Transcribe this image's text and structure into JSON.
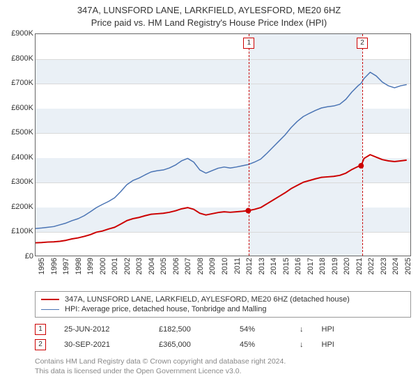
{
  "chart": {
    "title_line1": "347A, LUNSFORD LANE, LARKFIELD, AYLESFORD, ME20 6HZ",
    "title_line2": "Price paid vs. HM Land Registry's House Price Index (HPI)",
    "title_fontsize": 13,
    "background_color": "#ffffff",
    "plot_border_color": "#666666",
    "grid_color": "#d9d9d9",
    "band_color": "#eaf0f6",
    "axis_font_size": 11,
    "x": {
      "min": 1995.0,
      "max": 2025.8,
      "ticks": [
        1995,
        1996,
        1997,
        1998,
        1999,
        2000,
        2001,
        2002,
        2003,
        2004,
        2005,
        2006,
        2007,
        2008,
        2009,
        2010,
        2011,
        2012,
        2013,
        2014,
        2015,
        2016,
        2017,
        2018,
        2019,
        2020,
        2021,
        2022,
        2023,
        2024,
        2025
      ],
      "tick_rotation_deg": -90
    },
    "y": {
      "min": 0,
      "max": 900,
      "ticks": [
        0,
        100,
        200,
        300,
        400,
        500,
        600,
        700,
        800,
        900
      ],
      "tick_prefix": "£",
      "tick_suffix": "K",
      "zero_label": "£0"
    },
    "hband_years": [
      [
        2012.48,
        2013.0
      ],
      [
        2013.0,
        2021.75
      ]
    ],
    "hband_style": [
      "dashed-left-only",
      "shaded"
    ],
    "legend": [
      {
        "label": "347A, LUNSFORD LANE, LARKFIELD, AYLESFORD, ME20 6HZ (detached house)",
        "color": "#cc0000",
        "width": 2
      },
      {
        "label": "HPI: Average price, detached house, Tonbridge and Malling",
        "color": "#4a74b4",
        "width": 1.5
      }
    ],
    "series": [
      {
        "name": "property_price_paid_indexed",
        "color": "#cc0000",
        "width": 2,
        "points": [
          [
            1995.0,
            52
          ],
          [
            1995.5,
            53
          ],
          [
            1996.0,
            55
          ],
          [
            1996.5,
            56
          ],
          [
            1997.0,
            58
          ],
          [
            1997.5,
            62
          ],
          [
            1998.0,
            68
          ],
          [
            1998.5,
            72
          ],
          [
            1999.0,
            78
          ],
          [
            1999.5,
            85
          ],
          [
            2000.0,
            95
          ],
          [
            2000.5,
            100
          ],
          [
            2001.0,
            108
          ],
          [
            2001.5,
            115
          ],
          [
            2002.0,
            128
          ],
          [
            2002.5,
            142
          ],
          [
            2003.0,
            150
          ],
          [
            2003.5,
            155
          ],
          [
            2004.0,
            162
          ],
          [
            2004.5,
            168
          ],
          [
            2005.0,
            170
          ],
          [
            2005.5,
            172
          ],
          [
            2006.0,
            176
          ],
          [
            2006.5,
            182
          ],
          [
            2007.0,
            190
          ],
          [
            2007.5,
            195
          ],
          [
            2008.0,
            188
          ],
          [
            2008.5,
            172
          ],
          [
            2009.0,
            165
          ],
          [
            2009.5,
            170
          ],
          [
            2010.0,
            175
          ],
          [
            2010.5,
            178
          ],
          [
            2011.0,
            176
          ],
          [
            2011.5,
            178
          ],
          [
            2012.0,
            180
          ],
          [
            2012.48,
            182.5
          ],
          [
            2013.0,
            188
          ],
          [
            2013.5,
            195
          ],
          [
            2014.0,
            210
          ],
          [
            2014.5,
            225
          ],
          [
            2015.0,
            240
          ],
          [
            2015.5,
            255
          ],
          [
            2016.0,
            272
          ],
          [
            2016.5,
            285
          ],
          [
            2017.0,
            298
          ],
          [
            2017.5,
            305
          ],
          [
            2018.0,
            312
          ],
          [
            2018.5,
            318
          ],
          [
            2019.0,
            320
          ],
          [
            2019.5,
            322
          ],
          [
            2020.0,
            326
          ],
          [
            2020.5,
            335
          ],
          [
            2021.0,
            350
          ],
          [
            2021.5,
            362
          ],
          [
            2021.75,
            365
          ],
          [
            2022.0,
            395
          ],
          [
            2022.5,
            410
          ],
          [
            2023.0,
            400
          ],
          [
            2023.5,
            390
          ],
          [
            2024.0,
            385
          ],
          [
            2024.5,
            382
          ],
          [
            2025.0,
            385
          ],
          [
            2025.5,
            388
          ]
        ]
      },
      {
        "name": "hpi_detached_tonbridge_malling",
        "color": "#4a74b4",
        "width": 1.5,
        "points": [
          [
            1995.0,
            110
          ],
          [
            1995.5,
            112
          ],
          [
            1996.0,
            115
          ],
          [
            1996.5,
            118
          ],
          [
            1997.0,
            125
          ],
          [
            1997.5,
            132
          ],
          [
            1998.0,
            142
          ],
          [
            1998.5,
            150
          ],
          [
            1999.0,
            162
          ],
          [
            1999.5,
            178
          ],
          [
            2000.0,
            195
          ],
          [
            2000.5,
            208
          ],
          [
            2001.0,
            220
          ],
          [
            2001.5,
            235
          ],
          [
            2002.0,
            260
          ],
          [
            2002.5,
            288
          ],
          [
            2003.0,
            305
          ],
          [
            2003.5,
            315
          ],
          [
            2004.0,
            328
          ],
          [
            2004.5,
            340
          ],
          [
            2005.0,
            345
          ],
          [
            2005.5,
            348
          ],
          [
            2006.0,
            356
          ],
          [
            2006.5,
            368
          ],
          [
            2007.0,
            385
          ],
          [
            2007.5,
            395
          ],
          [
            2008.0,
            380
          ],
          [
            2008.5,
            348
          ],
          [
            2009.0,
            335
          ],
          [
            2009.5,
            345
          ],
          [
            2010.0,
            355
          ],
          [
            2010.5,
            360
          ],
          [
            2011.0,
            356
          ],
          [
            2011.5,
            360
          ],
          [
            2012.0,
            365
          ],
          [
            2012.48,
            370
          ],
          [
            2013.0,
            380
          ],
          [
            2013.5,
            392
          ],
          [
            2014.0,
            415
          ],
          [
            2014.5,
            440
          ],
          [
            2015.0,
            465
          ],
          [
            2015.5,
            490
          ],
          [
            2016.0,
            520
          ],
          [
            2016.5,
            545
          ],
          [
            2017.0,
            565
          ],
          [
            2017.5,
            578
          ],
          [
            2018.0,
            590
          ],
          [
            2018.5,
            600
          ],
          [
            2019.0,
            605
          ],
          [
            2019.5,
            608
          ],
          [
            2020.0,
            615
          ],
          [
            2020.5,
            635
          ],
          [
            2021.0,
            665
          ],
          [
            2021.5,
            690
          ],
          [
            2021.75,
            700
          ],
          [
            2022.0,
            720
          ],
          [
            2022.5,
            745
          ],
          [
            2023.0,
            730
          ],
          [
            2023.5,
            705
          ],
          [
            2024.0,
            690
          ],
          [
            2024.5,
            682
          ],
          [
            2025.0,
            690
          ],
          [
            2025.5,
            695
          ]
        ]
      }
    ],
    "sales": [
      {
        "idx": "1",
        "year": 2012.48,
        "price_k": 182.5,
        "date": "25-JUN-2012",
        "price_label": "£182,500",
        "pct_label": "54%",
        "vs_label": "HPI"
      },
      {
        "idx": "2",
        "year": 2021.75,
        "price_k": 365,
        "date": "30-SEP-2021",
        "price_label": "£365,000",
        "pct_label": "45%",
        "vs_label": "HPI"
      }
    ],
    "sale_marker": {
      "box_border": "#cc0000",
      "dashed_line_color": "#cc0000",
      "dot_radius": 4
    },
    "footer": {
      "line1": "Contains HM Land Registry data © Crown copyright and database right 2024.",
      "line2": "This data is licensed under the Open Government Licence v3.0.",
      "color": "#888888"
    }
  }
}
